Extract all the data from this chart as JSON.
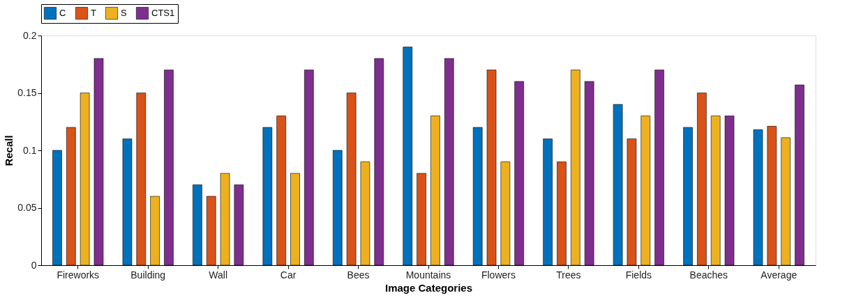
{
  "chart_data": {
    "type": "bar",
    "xlabel": "Image Categories",
    "ylabel": "Recall",
    "categories": [
      "Fireworks",
      "Building",
      "Wall",
      "Car",
      "Bees",
      "Mountains",
      "Flowers",
      "Trees",
      "Fields",
      "Beaches",
      "Average"
    ],
    "series": [
      {
        "name": "C",
        "color": "#0072bd",
        "values": [
          0.1,
          0.11,
          0.07,
          0.12,
          0.1,
          0.19,
          0.12,
          0.11,
          0.14,
          0.12,
          0.118
        ]
      },
      {
        "name": "T",
        "color": "#d95319",
        "values": [
          0.12,
          0.15,
          0.06,
          0.13,
          0.15,
          0.08,
          0.17,
          0.09,
          0.11,
          0.15,
          0.121
        ]
      },
      {
        "name": "S",
        "color": "#edb120",
        "values": [
          0.15,
          0.06,
          0.08,
          0.08,
          0.09,
          0.13,
          0.09,
          0.17,
          0.13,
          0.13,
          0.111
        ]
      },
      {
        "name": "CTS1",
        "color": "#7e2f8e",
        "values": [
          0.18,
          0.17,
          0.07,
          0.17,
          0.18,
          0.18,
          0.16,
          0.16,
          0.17,
          0.13,
          0.157
        ]
      }
    ],
    "ylim": [
      0,
      0.2
    ],
    "yticks": [
      0,
      0.05,
      0.1,
      0.15,
      0.2
    ],
    "grid": false,
    "legend": "top"
  }
}
